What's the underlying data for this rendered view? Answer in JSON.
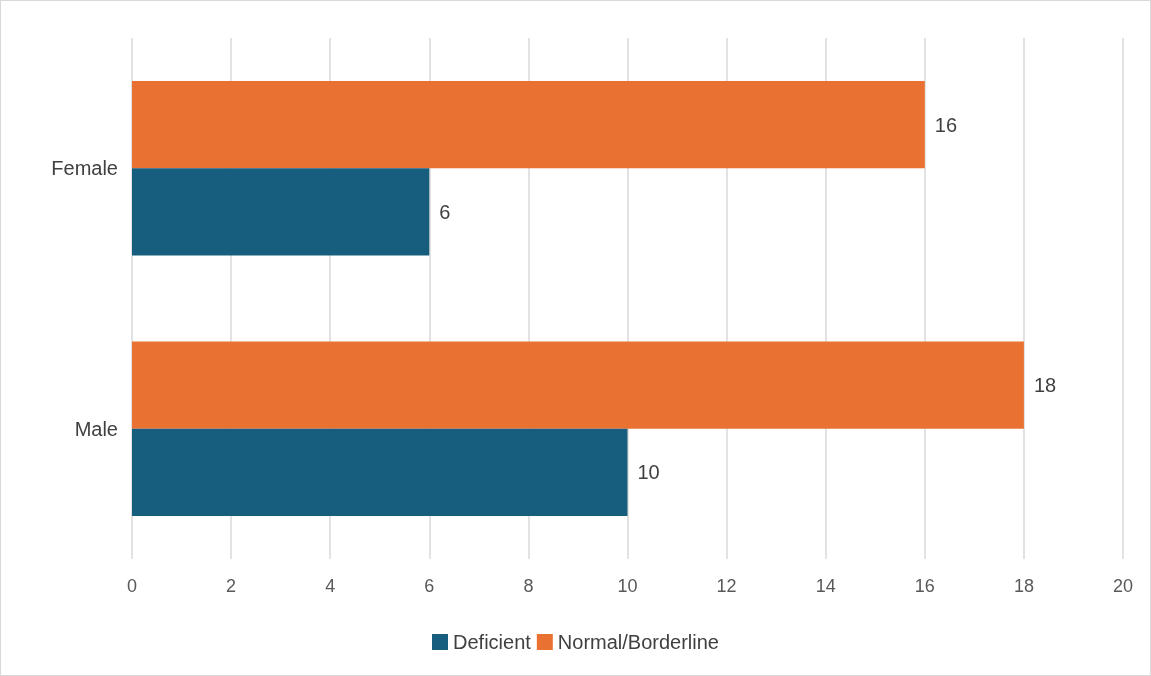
{
  "chart_data": {
    "type": "bar",
    "orientation": "horizontal",
    "categories": [
      "Female",
      "Male"
    ],
    "series": [
      {
        "name": "Deficient",
        "color": "#175e7e",
        "values": [
          6,
          10
        ]
      },
      {
        "name": "Normal/Borderline",
        "color": "#e97132",
        "values": [
          16,
          18
        ]
      }
    ],
    "xlim": [
      0,
      20
    ],
    "xticks": [
      0,
      2,
      4,
      6,
      8,
      10,
      12,
      14,
      16,
      18,
      20
    ],
    "grid": "x",
    "legend": "bottom",
    "data_labels": true
  }
}
